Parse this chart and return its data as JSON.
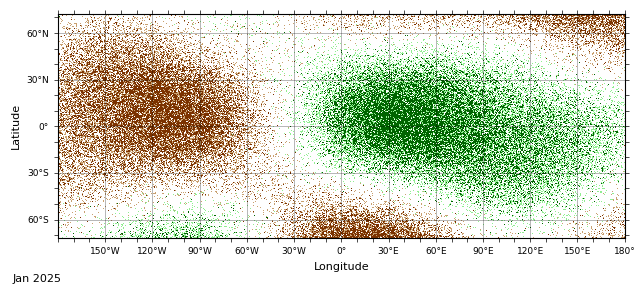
{
  "title": "",
  "xlabel": "Longitude",
  "ylabel": "Latitude",
  "date_label": "Jan 2025",
  "lon_ticks": [
    -150,
    -120,
    -90,
    -60,
    -30,
    0,
    30,
    60,
    90,
    120,
    150,
    180
  ],
  "lon_tick_labels": [
    "150°W",
    "120°W",
    "90°W",
    "60°W",
    "30°W",
    "0°",
    "30°E",
    "60°E",
    "90°E",
    "120°E",
    "150°E",
    "180°"
  ],
  "lat_ticks": [
    60,
    30,
    0,
    -30,
    -60
  ],
  "lat_tick_labels": [
    "60°N",
    "30°N",
    "0°",
    "30°S",
    "60°S"
  ],
  "color_dry_extreme": "#7B3200",
  "color_dry_moderate": "#C8A070",
  "color_wet_extreme": "#006400",
  "color_wet_moderate": "#90EE90",
  "color_gray": "#888888",
  "color_white": "#FFFFFF",
  "color_border": "#000000",
  "xlim": [
    -180,
    180
  ],
  "ylim": [
    -72,
    72
  ],
  "figsize": [
    6.44,
    2.87
  ],
  "dpi": 100
}
